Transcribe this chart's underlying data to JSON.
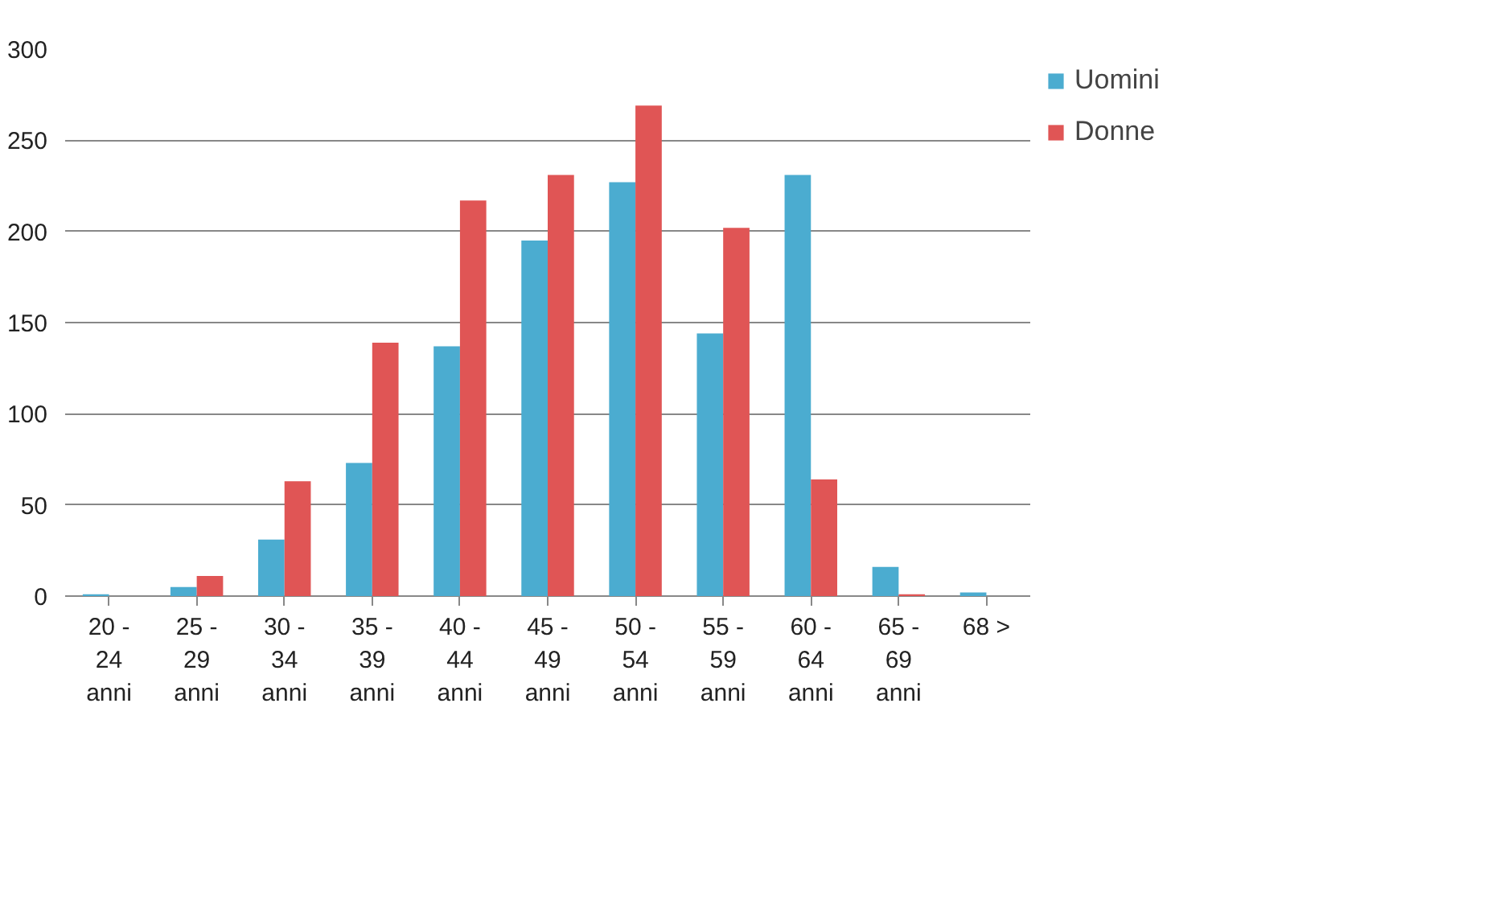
{
  "chart_data": {
    "type": "bar",
    "categories": [
      "20 - 24 anni",
      "25 - 29 anni",
      "30 - 34 anni",
      "35 - 39 anni",
      "40 - 44 anni",
      "45 - 49 anni",
      "50 - 54 anni",
      "55 - 59 anni",
      "60 - 64 anni",
      "65 - 69 anni",
      "68 >"
    ],
    "series": [
      {
        "name": "Uomini",
        "color": "#4bacd0",
        "values": [
          1,
          5,
          31,
          73,
          137,
          195,
          227,
          144,
          231,
          16,
          2
        ]
      },
      {
        "name": "Donne",
        "color": "#e05555",
        "values": [
          0,
          11,
          63,
          139,
          217,
          231,
          269,
          202,
          64,
          1,
          0
        ]
      }
    ],
    "ylim": [
      0,
      300
    ],
    "yticks": [
      0,
      50,
      100,
      150,
      200,
      250,
      300
    ],
    "grid": "y",
    "legend": "right"
  }
}
